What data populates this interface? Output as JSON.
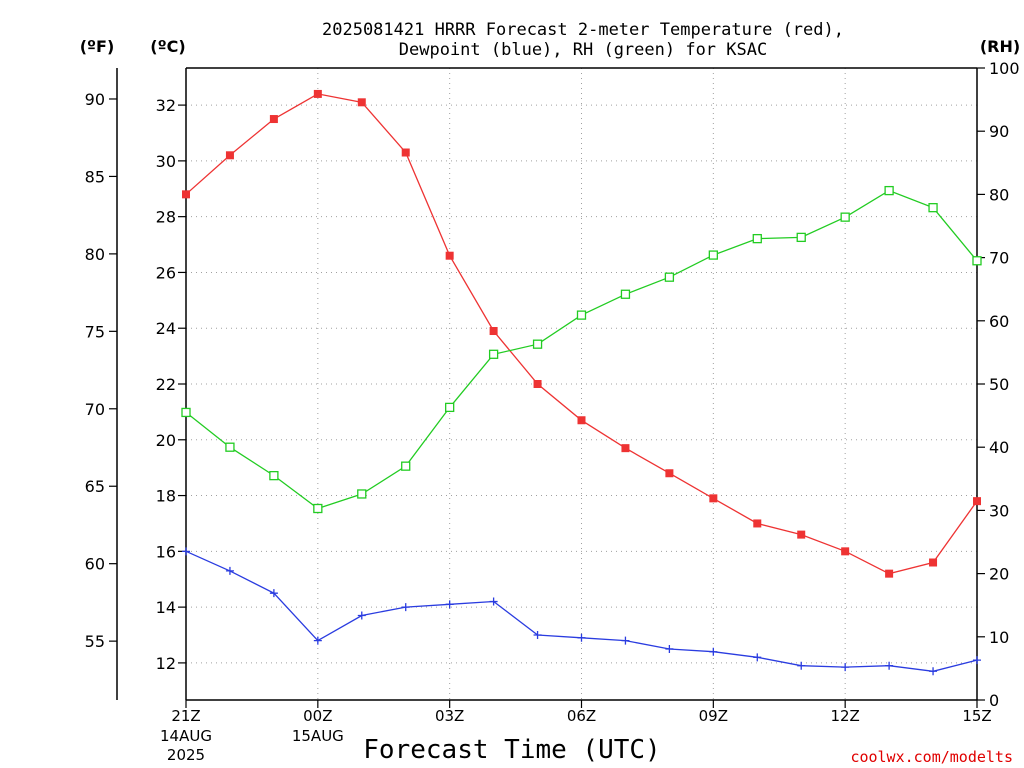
{
  "chart_data": {
    "type": "line",
    "title": "2025081421 HRRR Forecast 2-meter Temperature (red),",
    "subtitle": "Dewpoint (blue), RH (green) for KSAC",
    "xlabel": "Forecast Time (UTC)",
    "credit": "coolwx.com/modelts",
    "units": {
      "f": "(ºF)",
      "c": "(ºC)",
      "rh": "(RH)"
    },
    "x_ticks": [
      {
        "hour": 0,
        "label": "21Z",
        "sub1": "14AUG",
        "sub2": "2025"
      },
      {
        "hour": 3,
        "label": "00Z",
        "sub1": "15AUG",
        "sub2": ""
      },
      {
        "hour": 6,
        "label": "03Z",
        "sub1": "",
        "sub2": ""
      },
      {
        "hour": 9,
        "label": "06Z",
        "sub1": "",
        "sub2": ""
      },
      {
        "hour": 12,
        "label": "09Z",
        "sub1": "",
        "sub2": ""
      },
      {
        "hour": 15,
        "label": "12Z",
        "sub1": "",
        "sub2": ""
      },
      {
        "hour": 18,
        "label": "15Z",
        "sub1": "",
        "sub2": ""
      }
    ],
    "xlim": [
      0,
      18
    ],
    "ylim_c": [
      10.67,
      33.33
    ],
    "ylim_f": [
      51.2,
      92
    ],
    "ylim_rh": [
      0,
      100
    ],
    "ticks_c": [
      12,
      14,
      16,
      18,
      20,
      22,
      24,
      26,
      28,
      30,
      32
    ],
    "ticks_f": [
      55,
      60,
      65,
      70,
      75,
      80,
      85,
      90
    ],
    "ticks_rh": [
      0,
      10,
      20,
      30,
      40,
      50,
      60,
      70,
      80,
      90,
      100
    ],
    "hours": [
      0,
      1,
      2,
      3,
      4,
      5,
      6,
      7,
      8,
      9,
      10,
      11,
      12,
      13,
      14,
      15,
      16,
      17,
      18
    ],
    "series": [
      {
        "name": "Temperature",
        "axis": "c",
        "color": "#ee3333",
        "marker": "filled-square",
        "values": [
          28.8,
          30.2,
          31.5,
          32.4,
          32.1,
          30.3,
          26.6,
          23.9,
          22.0,
          20.7,
          19.7,
          18.8,
          17.9,
          17.0,
          16.6,
          16.0,
          15.2,
          15.6,
          17.8
        ]
      },
      {
        "name": "Dewpoint",
        "axis": "c",
        "color": "#2a3ce0",
        "marker": "plus",
        "values": [
          16.0,
          15.3,
          14.5,
          12.8,
          13.7,
          14.0,
          14.1,
          14.2,
          13.0,
          12.9,
          12.8,
          12.5,
          12.4,
          12.2,
          11.9,
          11.85,
          11.9,
          11.7,
          12.1
        ]
      },
      {
        "name": "RH",
        "axis": "rh",
        "color": "#22cc22",
        "marker": "open-square",
        "values": [
          45.5,
          40.0,
          35.5,
          30.3,
          32.6,
          37.0,
          46.3,
          54.7,
          56.3,
          60.9,
          64.2,
          66.9,
          70.4,
          73.0,
          73.2,
          76.4,
          80.6,
          77.9,
          69.5
        ]
      }
    ]
  }
}
